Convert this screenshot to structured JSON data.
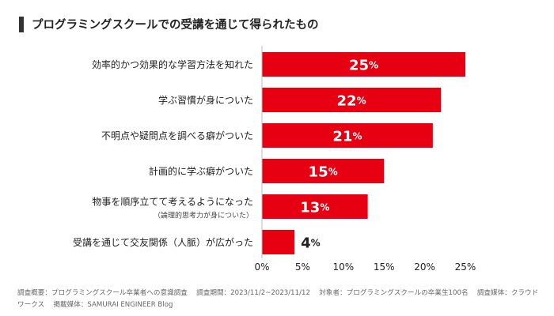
{
  "title": "プログラミングスクールでの受講を通じて得られたもの",
  "chart_data": {
    "type": "bar",
    "orientation": "horizontal",
    "categories": [
      {
        "label": "効率的かつ効果的な学習方法を知れた",
        "sublabel": ""
      },
      {
        "label": "学ぶ習慣が身についた",
        "sublabel": ""
      },
      {
        "label": "不明点や疑問点を調べる癖がついた",
        "sublabel": ""
      },
      {
        "label": "計画的に学ぶ癖がついた",
        "sublabel": ""
      },
      {
        "label": "物事を順序立てて考えるようになった",
        "sublabel": "（論理的思考力が身についた）"
      },
      {
        "label": "受講を通じて交友関係（人脈）が広がった",
        "sublabel": ""
      }
    ],
    "values": [
      25,
      22,
      21,
      15,
      13,
      4
    ],
    "value_suffix": "%",
    "xlim": [
      0,
      25
    ],
    "xticks": [
      "0%",
      "5%",
      "10%",
      "15%",
      "20%",
      "25%"
    ],
    "grid": false,
    "bar_color": "#e60012"
  },
  "footnote": "調査概要：プログラミングスクール卒業者への意識調査　 調査期間：2023/11/2~2023/11/12　 対象者：プログラミングスクールの卒業生100名　 調査媒体：クラウドワークス　 掲載媒体：SAMURAI ENGINEER Blog"
}
